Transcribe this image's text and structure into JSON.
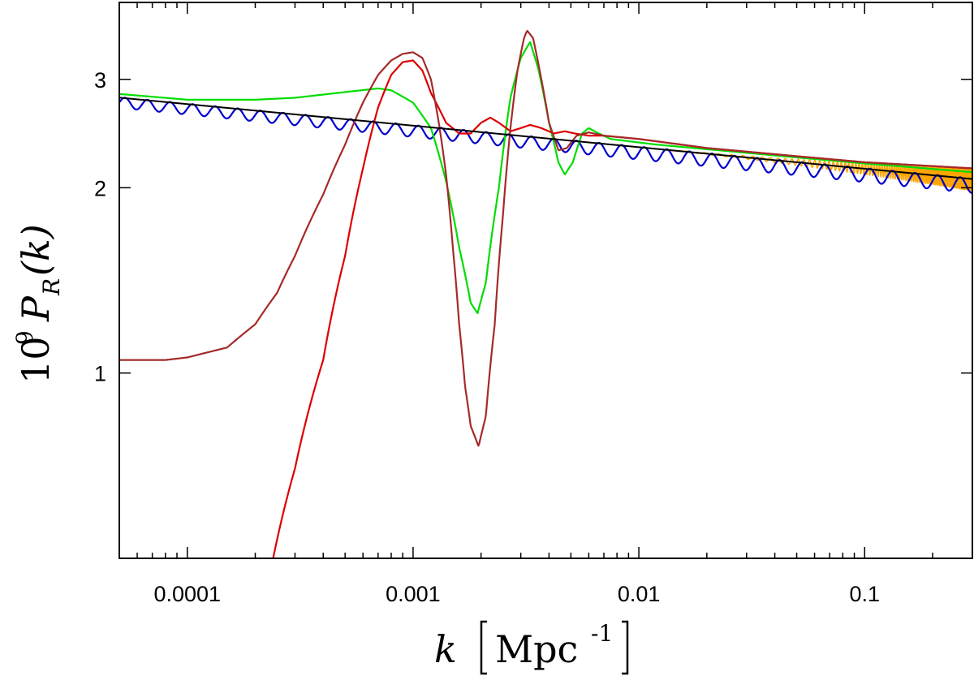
{
  "chart_data": {
    "type": "line",
    "xscale": "log",
    "yscale": "log",
    "xlim": [
      5e-05,
      0.3
    ],
    "ylim": [
      0.5,
      4.0
    ],
    "xticks": [
      {
        "value": 0.0001,
        "label": "0.0001"
      },
      {
        "value": 0.001,
        "label": "0.001"
      },
      {
        "value": 0.01,
        "label": "0.01"
      },
      {
        "value": 0.1,
        "label": "0.1"
      }
    ],
    "yticks": [
      {
        "value": 1,
        "label": "1"
      },
      {
        "value": 2,
        "label": "2"
      },
      {
        "value": 3,
        "label": "3"
      }
    ],
    "xlabel": {
      "k": "k",
      "unit": "Mpc",
      "exp": "-1"
    },
    "ylabel": {
      "prefix": "10",
      "exp": "9",
      "P": "P",
      "sub": "R",
      "arg": "(k)"
    },
    "grid": false,
    "legend": "none",
    "series": [
      {
        "name": "orange-oscillating",
        "color": "#ffa500",
        "width": 1.5,
        "model": {
          "base": "powerlaw",
          "amp0": 0.0,
          "ampMax": 0.09,
          "ampStart": 0.02,
          "freq": 320
        }
      },
      {
        "name": "blue-oscillating",
        "color": "#0000cd",
        "width": 2.2,
        "model": {
          "base": "powerlaw",
          "offset": -0.05,
          "amp": 0.055,
          "period_log10": 0.1
        }
      },
      {
        "name": "green-feature",
        "color": "#00dd00",
        "width": 2.2,
        "points": [
          [
            5e-05,
            2.84
          ],
          [
            0.0001,
            2.78
          ],
          [
            0.0002,
            2.78
          ],
          [
            0.0003,
            2.8
          ],
          [
            0.0005,
            2.86
          ],
          [
            0.0007,
            2.9
          ],
          [
            0.0008,
            2.88
          ],
          [
            0.001,
            2.75
          ],
          [
            0.0012,
            2.5
          ],
          [
            0.0014,
            2.05
          ],
          [
            0.0016,
            1.6
          ],
          [
            0.0018,
            1.3
          ],
          [
            0.00193,
            1.25
          ],
          [
            0.0021,
            1.4
          ],
          [
            0.0024,
            2.0
          ],
          [
            0.0027,
            2.8
          ],
          [
            0.003,
            3.25
          ],
          [
            0.0033,
            3.45
          ],
          [
            0.0036,
            3.1
          ],
          [
            0.004,
            2.55
          ],
          [
            0.0044,
            2.2
          ],
          [
            0.0047,
            2.1
          ],
          [
            0.0051,
            2.2
          ],
          [
            0.0056,
            2.45
          ],
          [
            0.006,
            2.5
          ],
          [
            0.0065,
            2.46
          ],
          [
            0.0075,
            2.4
          ],
          [
            0.009,
            2.38
          ],
          [
            0.012,
            2.35
          ],
          [
            0.02,
            2.31
          ],
          [
            0.05,
            2.24
          ],
          [
            0.1,
            2.19
          ],
          [
            0.3,
            2.12
          ]
        ]
      },
      {
        "name": "red-feature",
        "color": "#dd0000",
        "width": 2.2,
        "points": [
          [
            0.00024,
            0.5
          ],
          [
            0.0003,
            0.7
          ],
          [
            0.0004,
            1.05
          ],
          [
            0.0005,
            1.55
          ],
          [
            0.0006,
            2.15
          ],
          [
            0.0007,
            2.7
          ],
          [
            0.0008,
            3.05
          ],
          [
            0.0009,
            3.2
          ],
          [
            0.001,
            3.22
          ],
          [
            0.0011,
            3.1
          ],
          [
            0.0012,
            2.85
          ],
          [
            0.0014,
            2.55
          ],
          [
            0.0016,
            2.45
          ],
          [
            0.0018,
            2.45
          ],
          [
            0.002,
            2.55
          ],
          [
            0.0022,
            2.6
          ],
          [
            0.0024,
            2.55
          ],
          [
            0.0027,
            2.47
          ],
          [
            0.003,
            2.5
          ],
          [
            0.0033,
            2.53
          ],
          [
            0.0037,
            2.5
          ],
          [
            0.0042,
            2.45
          ],
          [
            0.0047,
            2.47
          ],
          [
            0.0052,
            2.45
          ],
          [
            0.006,
            2.43
          ],
          [
            0.007,
            2.43
          ],
          [
            0.01,
            2.4
          ],
          [
            0.02,
            2.32
          ],
          [
            0.05,
            2.25
          ],
          [
            0.1,
            2.2
          ],
          [
            0.3,
            2.15
          ]
        ]
      },
      {
        "name": "brown-feature",
        "color": "#a52a2a",
        "width": 2.2,
        "points": [
          [
            5e-05,
            1.05
          ],
          [
            8e-05,
            1.05
          ],
          [
            0.0001,
            1.06
          ],
          [
            0.00015,
            1.1
          ],
          [
            0.0002,
            1.2
          ],
          [
            0.00025,
            1.35
          ],
          [
            0.0003,
            1.55
          ],
          [
            0.0004,
            1.95
          ],
          [
            0.0005,
            2.35
          ],
          [
            0.0006,
            2.75
          ],
          [
            0.0007,
            3.05
          ],
          [
            0.0008,
            3.22
          ],
          [
            0.0009,
            3.3
          ],
          [
            0.001,
            3.32
          ],
          [
            0.0011,
            3.25
          ],
          [
            0.0012,
            3.0
          ],
          [
            0.0013,
            2.55
          ],
          [
            0.0014,
            2.1
          ],
          [
            0.0015,
            1.6
          ],
          [
            0.0016,
            1.2
          ],
          [
            0.0017,
            0.95
          ],
          [
            0.0018,
            0.82
          ],
          [
            0.00195,
            0.76
          ],
          [
            0.0021,
            0.85
          ],
          [
            0.0023,
            1.2
          ],
          [
            0.0025,
            1.8
          ],
          [
            0.0027,
            2.5
          ],
          [
            0.0029,
            3.1
          ],
          [
            0.0031,
            3.5
          ],
          [
            0.0032,
            3.6
          ],
          [
            0.0034,
            3.5
          ],
          [
            0.0037,
            3.0
          ],
          [
            0.004,
            2.55
          ],
          [
            0.0044,
            2.3
          ],
          [
            0.0048,
            2.32
          ],
          [
            0.0053,
            2.43
          ],
          [
            0.006,
            2.46
          ],
          [
            0.007,
            2.43
          ],
          [
            0.01,
            2.4
          ],
          [
            0.02,
            2.32
          ],
          [
            0.05,
            2.25
          ],
          [
            0.1,
            2.2
          ],
          [
            0.3,
            2.15
          ]
        ]
      },
      {
        "name": "black-powerlaw",
        "color": "#000000",
        "width": 2.0,
        "model": {
          "base": "powerlaw"
        }
      }
    ],
    "powerlaw": {
      "A": 2.2,
      "k_pivot": 0.05,
      "ns": 0.965
    }
  }
}
